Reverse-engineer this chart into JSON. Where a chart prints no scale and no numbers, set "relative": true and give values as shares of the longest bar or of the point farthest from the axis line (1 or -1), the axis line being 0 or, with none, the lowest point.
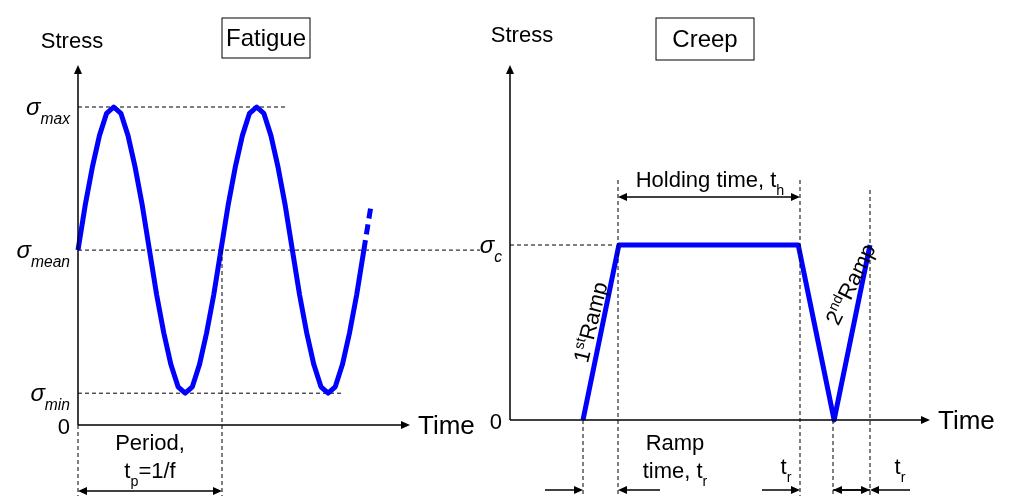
{
  "chart_data": [
    {
      "type": "line",
      "title": "Fatigue",
      "xlabel": "Time",
      "ylabel": "Stress",
      "relative": true,
      "categories": [
        null,
        null,
        null,
        null,
        null,
        null,
        null,
        null,
        null,
        null,
        null,
        null,
        null,
        null,
        null,
        null,
        null,
        null,
        null,
        null,
        null,
        null,
        null,
        null,
        null,
        null,
        null,
        null,
        null,
        null,
        null,
        null,
        null,
        null,
        null,
        null,
        null,
        null,
        null,
        null,
        null,
        null
      ],
      "series": [
        {
          "color": "#0000ff",
          "line_style": "solid",
          "values": [
            0.55,
            0.69,
            0.81,
            0.91,
            0.98,
            1,
            0.98,
            0.91,
            0.81,
            0.69,
            0.55,
            0.41,
            0.29,
            0.19,
            0.12,
            0.1,
            0.12,
            0.19,
            0.29,
            0.41,
            0.55,
            0.69,
            0.81,
            0.91,
            0.98,
            1,
            0.98,
            0.91,
            0.81,
            0.69,
            0.55,
            0.41,
            0.29,
            0.19,
            0.12,
            0.1,
            0.12,
            0.19,
            0.29,
            0.41,
            0.55,
            null
          ]
        },
        {
          "color": "#0000ff",
          "line_style": "dashed",
          "values": [
            null,
            null,
            null,
            null,
            null,
            null,
            null,
            null,
            null,
            null,
            null,
            null,
            null,
            null,
            null,
            null,
            null,
            null,
            null,
            null,
            null,
            null,
            null,
            null,
            null,
            null,
            null,
            null,
            null,
            null,
            null,
            null,
            null,
            null,
            null,
            null,
            null,
            null,
            null,
            null,
            0.55,
            0.69
          ]
        }
      ],
      "ref_lines": [
        {
          "axis": "y",
          "value": 1,
          "label": "σ$_{max}$",
          "line_style": "dashed",
          "color": "#000000"
        },
        {
          "axis": "y",
          "value": 0.55,
          "label": "σ$_{mean}$",
          "line_style": "dashed",
          "color": "#000000"
        },
        {
          "axis": "y",
          "value": 0.1,
          "label": "σ$_{min}$",
          "line_style": "dashed",
          "color": "#000000"
        }
      ],
      "annotations": [
        "0",
        "Period,",
        "t$_{p}$=1/f"
      ]
    },
    {
      "type": "line",
      "title": "Creep",
      "xlabel": "Time",
      "ylabel": "Stress",
      "relative": true,
      "categories": [
        null,
        null,
        null,
        null,
        null,
        null,
        null,
        null,
        null
      ],
      "series": [
        {
          "color": "#0000ff",
          "line_style": "solid",
          "values": [
            0,
            1,
            1,
            1,
            1,
            1,
            1,
            0,
            1
          ]
        }
      ],
      "ref_lines": [
        {
          "axis": "y",
          "value": 1,
          "label": "σ$_{c}$",
          "line_style": "dashed",
          "color": "#000000"
        }
      ],
      "annotations": [
        "0",
        "Holding time, t$_{h}$",
        "1$^{st}$Ramp",
        "2$^{nd}$Ramp",
        "Ramp",
        "time, t$_{r}$",
        "t$_{r}$",
        "t$_{r}$"
      ]
    }
  ]
}
